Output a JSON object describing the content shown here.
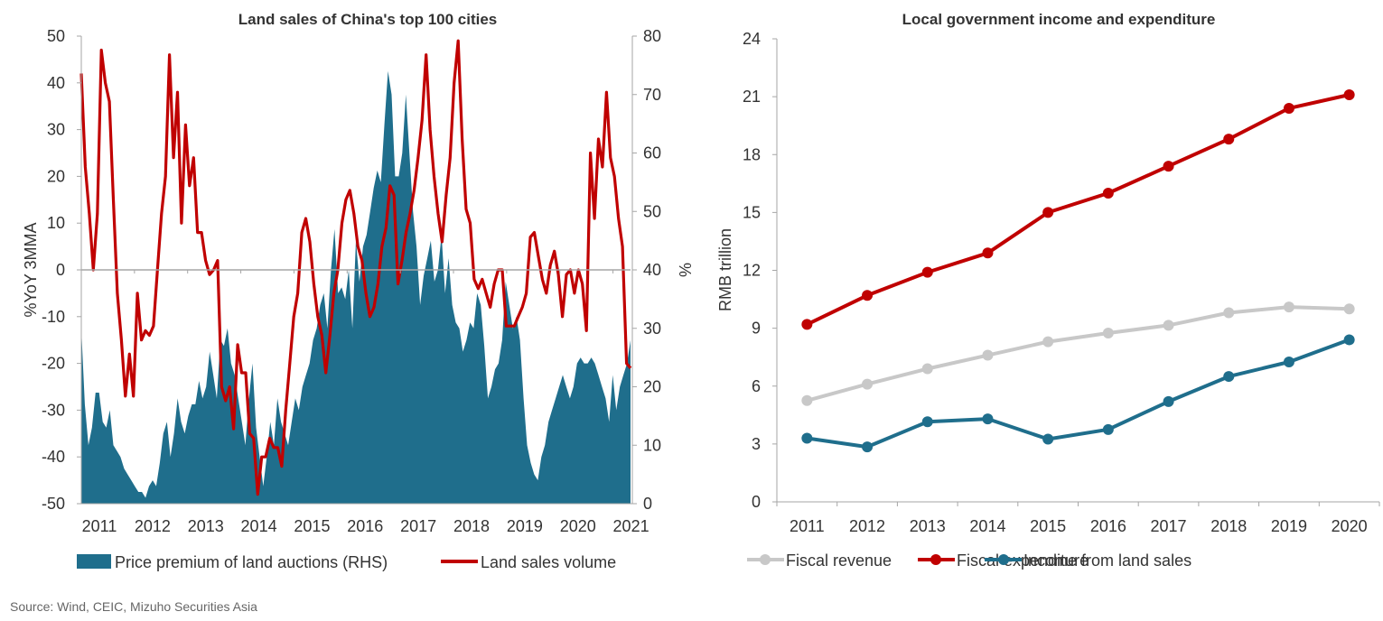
{
  "source_note": "Source: Wind, CEIC, Mizuho Securities Asia",
  "colors": {
    "area_teal": "#1F6E8C",
    "line_red": "#C00000",
    "revenue_gray": "#C8C8C8",
    "axis_gray": "#A6A6A6"
  },
  "chart_data": [
    {
      "type": "line",
      "title": "Land sales of China's top 100 cities",
      "ylabel": "%YoY 3MMA",
      "y2label": "%",
      "ylim": [
        -50,
        50
      ],
      "y2lim": [
        0,
        80
      ],
      "yticks": [
        "50",
        "40",
        "30",
        "20",
        "10",
        "0",
        "-10",
        "-20",
        "-30",
        "-40",
        "-50"
      ],
      "y2ticks": [
        "80",
        "70",
        "60",
        "50",
        "40",
        "30",
        "20",
        "10",
        "0"
      ],
      "xticks": [
        "2011",
        "2012",
        "2013",
        "2014",
        "2015",
        "2016",
        "2017",
        "2018",
        "2019",
        "2020",
        "2021"
      ],
      "x_start": 2011.0,
      "x_end": 2021.33,
      "grid": false,
      "legend_position": "bottom",
      "series": [
        {
          "name": "Price premium of land auctions (RHS)",
          "type": "area",
          "axis": "right",
          "values": [
            30,
            17,
            10,
            13,
            19,
            19,
            14,
            13,
            16,
            10,
            9,
            8,
            6,
            5,
            4,
            3,
            2,
            2,
            1,
            3,
            4,
            3,
            7,
            12,
            14,
            8,
            12,
            18,
            14,
            12,
            15,
            17,
            17,
            21,
            18,
            20,
            26,
            22,
            18,
            28,
            27,
            30,
            24,
            22,
            18,
            14,
            10,
            18,
            24,
            13,
            8,
            3,
            8,
            14,
            10,
            18,
            14,
            12,
            10,
            14,
            18,
            16,
            20,
            22,
            24,
            28,
            30,
            34,
            36,
            30,
            40,
            47,
            36,
            37,
            35,
            40,
            30,
            45,
            38,
            44,
            46,
            50,
            54,
            57,
            55,
            65,
            74,
            70,
            56,
            56,
            60,
            70,
            60,
            50,
            44,
            34,
            39,
            42,
            45,
            38,
            40,
            46,
            36,
            42,
            34,
            31,
            30,
            26,
            28,
            31,
            30,
            36,
            34,
            27,
            18,
            20,
            23,
            24,
            28,
            38,
            34,
            30,
            32,
            28,
            18,
            10,
            7,
            5,
            4,
            8,
            10,
            14,
            16,
            18,
            20,
            22,
            20,
            18,
            20,
            24,
            25,
            24,
            24,
            25,
            24,
            22,
            20,
            18,
            14,
            22,
            16,
            20,
            22,
            24,
            28
          ]
        },
        {
          "name": "Land sales volume",
          "type": "line",
          "axis": "left",
          "values": [
            42,
            22,
            12,
            0,
            12,
            47,
            40,
            36,
            15,
            -5,
            -15,
            -27,
            -18,
            -27,
            -5,
            -15,
            -13,
            -14,
            -12,
            0,
            12,
            20,
            46,
            24,
            38,
            10,
            31,
            18,
            24,
            8,
            8,
            2,
            -1,
            0,
            2,
            -25,
            -28,
            -25,
            -34,
            -16,
            -22,
            -22,
            -35,
            -36,
            -48,
            -40,
            -40,
            -36,
            -38,
            -38,
            -42,
            -30,
            -20,
            -10,
            -5,
            8,
            11,
            6,
            -3,
            -10,
            -14,
            -22,
            -14,
            -5,
            0,
            10,
            15,
            17,
            12,
            5,
            2,
            -5,
            -10,
            -8,
            -3,
            5,
            9,
            18,
            16,
            -3,
            2,
            8,
            12,
            17,
            24,
            32,
            46,
            30,
            20,
            12,
            6,
            16,
            24,
            40,
            49,
            28,
            13,
            10,
            -2,
            -4,
            -2,
            -5,
            -8,
            -3,
            0,
            0,
            -12,
            -12,
            -12,
            -10,
            -8,
            -5,
            7,
            8,
            3,
            -2,
            -5,
            1,
            4,
            -1,
            -10,
            -1,
            0,
            -5,
            0,
            -3,
            -13,
            25,
            11,
            28,
            22,
            38,
            24,
            20,
            11,
            5,
            -20,
            -21
          ]
        }
      ]
    },
    {
      "type": "line",
      "title": "Local government income and expenditure",
      "ylabel": "RMB trillion",
      "ylim": [
        0,
        24
      ],
      "yticks": [
        "24",
        "21",
        "18",
        "15",
        "12",
        "9",
        "6",
        "3",
        "0"
      ],
      "categories": [
        "2011",
        "2012",
        "2013",
        "2014",
        "2015",
        "2016",
        "2017",
        "2018",
        "2019",
        "2020"
      ],
      "grid": false,
      "legend_position": "bottom",
      "series": [
        {
          "name": "Fiscal revenue",
          "values": [
            5.25,
            6.1,
            6.9,
            7.6,
            8.3,
            8.75,
            9.15,
            9.8,
            10.1,
            10.0
          ]
        },
        {
          "name": "Fiscal expenditure",
          "values": [
            9.2,
            10.7,
            11.9,
            12.9,
            15.0,
            16.0,
            17.4,
            18.8,
            20.4,
            21.1
          ]
        },
        {
          "name": "Income from land sales",
          "values": [
            3.3,
            2.85,
            4.15,
            4.3,
            3.25,
            3.75,
            5.2,
            6.5,
            7.25,
            8.4
          ]
        }
      ]
    }
  ]
}
